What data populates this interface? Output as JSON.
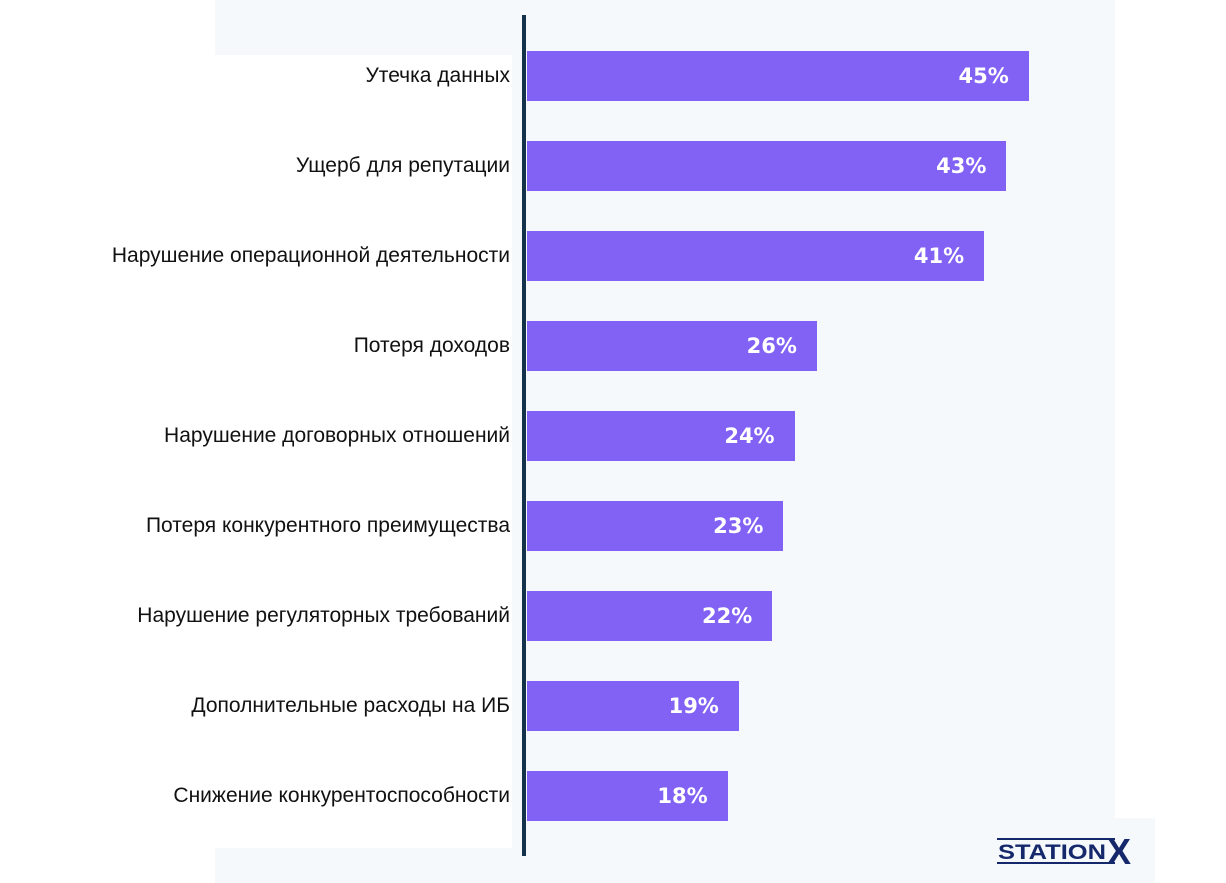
{
  "chart_data": {
    "type": "bar",
    "orientation": "horizontal",
    "categories": [
      "Утечка данных",
      "Ущерб для репутации",
      "Нарушение операционной деятельности",
      "Потеря доходов",
      "Нарушение договорных отношений",
      "Потеря конкурентного преимущества",
      "Нарушение регуляторных требований",
      "Дополнительные расходы на ИБ",
      "Снижение конкурентоспособности"
    ],
    "values": [
      45,
      43,
      41,
      26,
      24,
      23,
      22,
      19,
      18
    ],
    "value_labels": [
      "45%",
      "43%",
      "41%",
      "26%",
      "24%",
      "23%",
      "22%",
      "19%",
      "18%"
    ],
    "unit": "%",
    "bar_color": "#8162f5",
    "axis_color": "#14324a",
    "grid": false
  },
  "logo": {
    "text": "STATIONX",
    "color": "#14286b"
  }
}
